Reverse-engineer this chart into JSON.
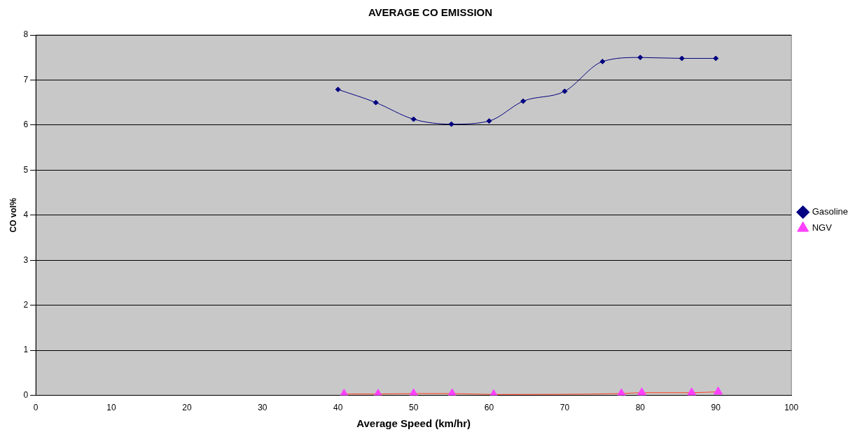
{
  "chart_data": {
    "type": "line",
    "title": "AVERAGE CO EMISSION",
    "xlabel": "Average Speed (km/hr)",
    "ylabel": "CO vol%",
    "xlim": [
      0,
      100
    ],
    "xticks": [
      0,
      10,
      20,
      30,
      40,
      50,
      60,
      70,
      80,
      90,
      100
    ],
    "ylim": [
      0,
      8
    ],
    "yticks": [
      0,
      1,
      2,
      3,
      4,
      5,
      6,
      7,
      8
    ],
    "grid": "y",
    "legend": "right",
    "series": [
      {
        "name": "Gasoline",
        "color": "#000080",
        "marker": "diamond",
        "x": [
          40,
          45,
          50,
          55,
          60,
          64.5,
          70,
          75,
          80,
          85.5,
          90
        ],
        "values": [
          6.79,
          6.5,
          6.13,
          6.02,
          6.09,
          6.53,
          6.75,
          7.41,
          7.5,
          7.48,
          7.48
        ]
      },
      {
        "name": "NGV",
        "color": "#ff4020",
        "marker": "triangle",
        "x": [
          40.8,
          45.3,
          50,
          55.1,
          60.6,
          77.5,
          80.2,
          86.8,
          90.3
        ],
        "values": [
          0.03,
          0.03,
          0.04,
          0.04,
          0.02,
          0.04,
          0.06,
          0.06,
          0.08
        ]
      }
    ]
  }
}
